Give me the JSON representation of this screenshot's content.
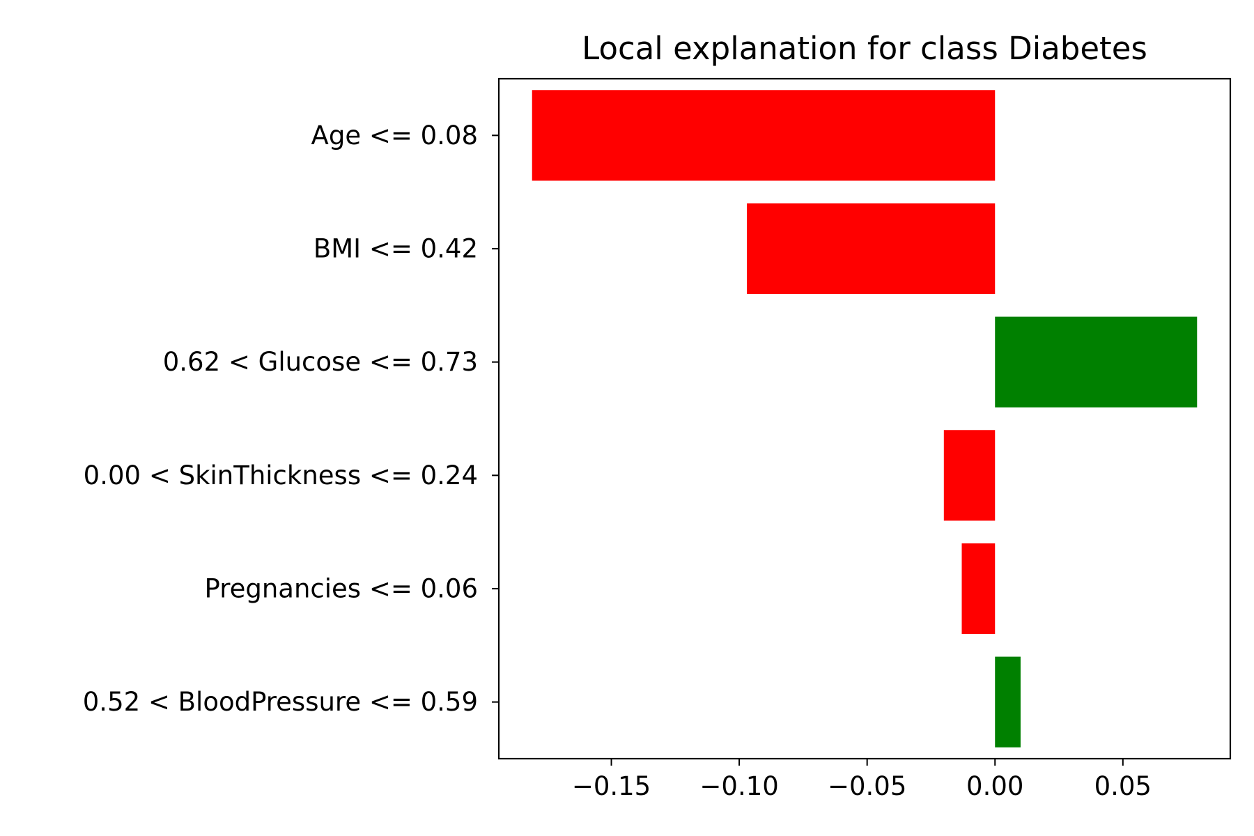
{
  "chart_data": {
    "type": "bar",
    "orientation": "horizontal",
    "title": "Local explanation for class Diabetes",
    "xlabel": "",
    "ylabel": "",
    "categories": [
      "Age <= 0.08",
      "BMI <= 0.42",
      "0.62 < Glucose <= 0.73",
      "0.00 < SkinThickness <= 0.24",
      "Pregnancies <= 0.06",
      "0.52 < BloodPressure <= 0.59"
    ],
    "values": [
      -0.181,
      -0.097,
      0.079,
      -0.02,
      -0.013,
      0.01
    ],
    "xlim": [
      -0.194,
      0.092
    ],
    "xticks": [
      -0.15,
      -0.1,
      -0.05,
      0.0,
      0.05
    ],
    "xtick_labels": [
      "−0.15",
      "−0.10",
      "−0.05",
      "0.00",
      "0.05"
    ],
    "grid": false,
    "legend": "none",
    "colors": {
      "positive": "#008000",
      "negative": "#ff0000"
    }
  }
}
